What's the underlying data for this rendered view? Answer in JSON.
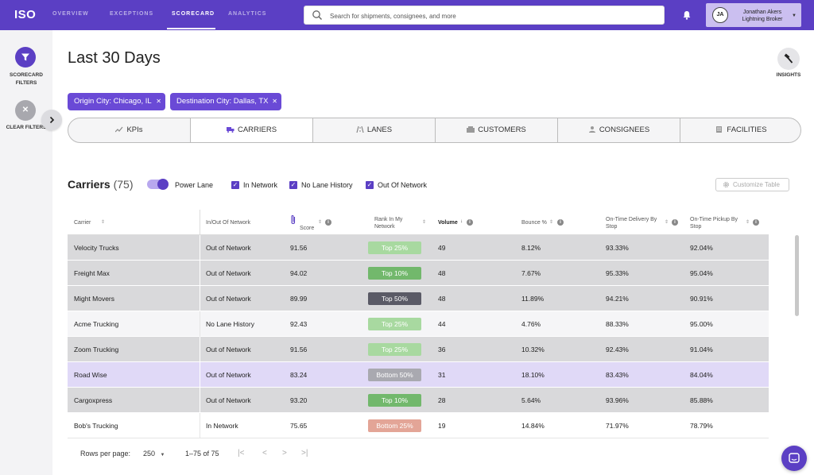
{
  "app": {
    "logo": "ISO",
    "nav": [
      {
        "label": "OVERVIEW"
      },
      {
        "label": "EXCEPTIONS"
      },
      {
        "label": "SCORECARD"
      },
      {
        "label": "ANALYTICS"
      }
    ],
    "search_placeholder": "Search for shipments, consignees, and more",
    "user": {
      "initials": "JA",
      "name": "Jonathan Akers",
      "company": "Lightning Broker"
    }
  },
  "sidebar": {
    "scorecard_filters": "SCORECARD FILTERS",
    "clear_filters": "CLEAR FILTERS"
  },
  "main": {
    "title": "Last 30 Days",
    "insights": "INSIGHTS",
    "chips": [
      {
        "label": "Origin City: Chicago, IL"
      },
      {
        "label": "Destination City: Dallas, TX"
      }
    ],
    "tabs": [
      {
        "label": "KPIs"
      },
      {
        "label": "CARRIERS"
      },
      {
        "label": "LANES"
      },
      {
        "label": "CUSTOMERS"
      },
      {
        "label": "CONSIGNEES"
      },
      {
        "label": "FACILITIES"
      }
    ],
    "active_tab": "CARRIERS",
    "section_title": "Carriers",
    "section_count": "(75)",
    "power_lane": "Power Lane",
    "filters": [
      {
        "label": "In Network",
        "checked": true
      },
      {
        "label": "No Lane History",
        "checked": true
      },
      {
        "label": "Out Of Network",
        "checked": true
      }
    ],
    "customize": "Customize Table"
  },
  "table": {
    "headers": {
      "carrier": "Carrier",
      "network": "In/Out Of Network",
      "score": "Score",
      "rank_1": "Rank In My",
      "rank_2": "Network",
      "volume": "Volume",
      "bounce": "Bounce %",
      "otd_1": "On-Time Delivery By",
      "otd_2": "Stop",
      "otp_1": "On-Time Pickup By",
      "otp_2": "Stop"
    },
    "rows": [
      {
        "carrier": "Velocity Trucks",
        "network": "Out of Network",
        "score": "91.56",
        "rank": "Top 25%",
        "volume": "49",
        "bounce": "8.12%",
        "otd": "93.33%",
        "otp": "92.04%"
      },
      {
        "carrier": "Freight Max",
        "network": "Out of Network",
        "score": "94.02",
        "rank": "Top 10%",
        "volume": "48",
        "bounce": "7.67%",
        "otd": "95.33%",
        "otp": "95.04%"
      },
      {
        "carrier": "Might Movers",
        "network": "Out of Network",
        "score": "89.99",
        "rank": "Top 50%",
        "volume": "48",
        "bounce": "11.89%",
        "otd": "94.21%",
        "otp": "90.91%"
      },
      {
        "carrier": "Acme Trucking",
        "network": "No Lane History",
        "score": "92.43",
        "rank": "Top 25%",
        "volume": "44",
        "bounce": "4.76%",
        "otd": "88.33%",
        "otp": "95.00%"
      },
      {
        "carrier": "Zoom Trucking",
        "network": "Out of Network",
        "score": "91.56",
        "rank": "Top 25%",
        "volume": "36",
        "bounce": "10.32%",
        "otd": "92.43%",
        "otp": "91.04%"
      },
      {
        "carrier": "Road Wise",
        "network": "Out of Network",
        "score": "83.24",
        "rank": "Bottom 50%",
        "volume": "31",
        "bounce": "18.10%",
        "otd": "83.43%",
        "otp": "84.04%"
      },
      {
        "carrier": "Cargoxpress",
        "network": "Out of Network",
        "score": "93.20",
        "rank": "Top 10%",
        "volume": "28",
        "bounce": "5.64%",
        "otd": "93.96%",
        "otp": "85.88%"
      },
      {
        "carrier": "Bob's Trucking",
        "network": "In Network",
        "score": "75.65",
        "rank": "Bottom 25%",
        "volume": "19",
        "bounce": "14.84%",
        "otd": "71.97%",
        "otp": "78.79%"
      }
    ]
  },
  "pagination": {
    "rows_per_page_label": "Rows per page:",
    "rows_per_page": "250",
    "range": "1–75 of 75"
  },
  "colors": {
    "brand": "#5b3fc4",
    "top10": "#72b86c",
    "top25": "#a8d9a0",
    "top50": "#5a5a66",
    "bottom50": "#a9a9b0",
    "bottom25": "#e3a597"
  }
}
